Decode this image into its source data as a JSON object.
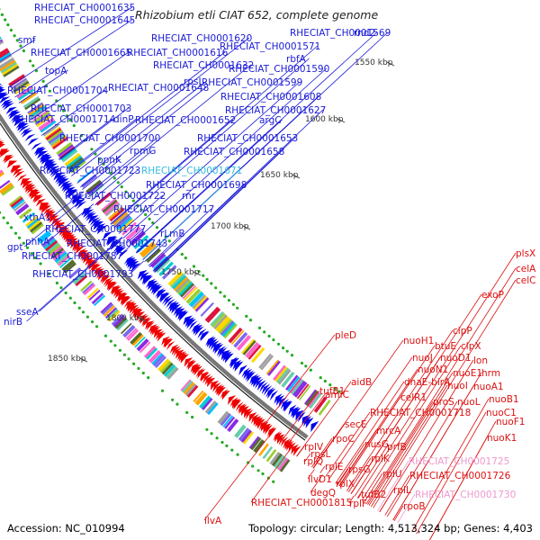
{
  "title": "Rhizobium etli CIAT 652, complete genome",
  "accession": "Accession: NC_010994",
  "summary": "Topology: circular; Length: 4,513,324 bp; Genes: 4,403",
  "colors": {
    "forward_strand": "#0000ee",
    "reverse_strand": "#ee0000",
    "highlight_cyan": "#33bbdd",
    "highlight_pink": "#ee99cc",
    "backbone": "#777777",
    "gc_marks": "#22aa22"
  },
  "scale_ticks": [
    {
      "label": "1550 kbp",
      "k": 0.0
    },
    {
      "label": "1600 kbp",
      "k": 0.0
    },
    {
      "label": "1650 kbp",
      "k": 0.0
    },
    {
      "label": "1700 kbp",
      "k": 0.0
    },
    {
      "label": "1750 kbp",
      "k": 0.0
    },
    {
      "label": "1800 kbp",
      "k": 0.0
    },
    {
      "label": "1850 kbp",
      "k": 0.0
    }
  ],
  "blue_labels": [
    "RHECIAT_CH0001635",
    "RHECIAT_CH0001645",
    "smf",
    "RHECIAT_CH0001665",
    "RHECIAT_CH0001616",
    "RHECIAT_CH0001620",
    "RHECIAT_CH0001569",
    "rnd2",
    "RHECIAT_CH0001571",
    "topA",
    "RHECIAT_CH0001632",
    "RHECIAT_CH0001590",
    "rbfA",
    "rpsI",
    "RHECIAT_CH0001599",
    "RHECIAT_CH0001704",
    "RHECIAT_CH0001648",
    "RHECIAT_CH0001608",
    "RHECIAT_CH0001703",
    "RHECIAT_CH0001627",
    "RHECIAT_CH0001714",
    "dinP",
    "RHECIAT_CH0001652",
    "argC",
    "RHECIAT_CH0001700",
    "RHECIAT_CH0001653",
    "rpmG",
    "RHECIAT_CH0001658",
    "ppnK",
    "RHECIAT_CH0001723",
    "RHECIAT_CH0001698",
    "RHECIAT_CH0001722",
    "rnr",
    "RHECIAT_CH0001717",
    "xthA1",
    "RHECIAT_CH0001777",
    "rLmB",
    "gpt",
    "phhA",
    "RHECIAT_CH0001743",
    "RHECIAT_CH0001787",
    "RHECIAT_CH0001793",
    "sseA",
    "nirB"
  ],
  "cyan_labels": [
    "RHECIAT_CH0001671"
  ],
  "red_labels": [
    "plsX",
    "celA",
    "celC",
    "exoP",
    "clpP",
    "nuoH1",
    "btuE",
    "clpX",
    "pleD",
    "nuoJ",
    "nuoD1",
    "lon",
    "nuoN1",
    "nuoE1",
    "hrm",
    "dnaE-birA",
    "nuoI",
    "nuoA1",
    "aidB",
    "celR1",
    "proS",
    "nuoL",
    "nuoB1",
    "tufB1",
    "amiC",
    "RHECIAT_CH0001718",
    "nuoC1",
    "nuoF1",
    "secE",
    "mrcA",
    "nuoK1",
    "rpoC",
    "prfB",
    "rplV",
    "rpsL",
    "nusG",
    "rplK",
    "rplQ",
    "rplE",
    "rpsG",
    "rplU",
    "RHECIAT_CH0001726",
    "ilvD1",
    "rplX",
    "rplL",
    "degQ",
    "tufB2",
    "rpoB",
    "RHECIAT_CH0001815",
    "rplF",
    "ilvA"
  ],
  "pink_labels": [
    "RHECIAT_CH0001725",
    "RHECIAT_CH0001730"
  ]
}
